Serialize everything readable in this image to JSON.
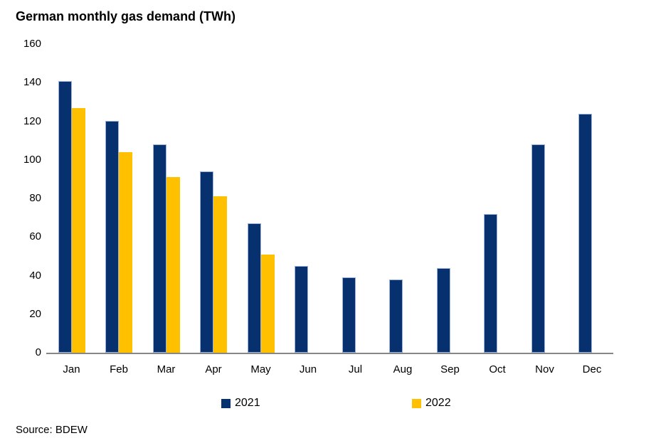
{
  "title": "German monthly gas demand (TWh)",
  "source": "Source: BDEW",
  "colors": {
    "navy": "#06316e",
    "gold": "#ffc000",
    "bar_border": "#9fb3d8",
    "axis_line": "#868686"
  },
  "legend": [
    {
      "label": "2021",
      "color": "#06316e"
    },
    {
      "label": "2022",
      "color": "#ffc000"
    }
  ],
  "chart_data": {
    "type": "bar",
    "title": "German monthly gas demand (TWh)",
    "categories": [
      "Jan",
      "Feb",
      "Mar",
      "Apr",
      "May",
      "Jun",
      "Jul",
      "Aug",
      "Sep",
      "Oct",
      "Nov",
      "Dec"
    ],
    "series": [
      {
        "name": "2021",
        "color": "#06316e",
        "values": [
          141,
          120,
          108,
          94,
          67,
          45,
          39,
          38,
          44,
          72,
          108,
          124
        ]
      },
      {
        "name": "2022",
        "color": "#ffc000",
        "values": [
          127,
          104,
          91,
          81,
          51,
          null,
          null,
          null,
          null,
          null,
          null,
          null
        ]
      }
    ],
    "xlabel": "",
    "ylabel": "",
    "ylim": [
      0,
      160
    ],
    "yticks": [
      0,
      20,
      40,
      60,
      80,
      100,
      120,
      140,
      160
    ],
    "grid": false,
    "legend_position": "bottom"
  }
}
